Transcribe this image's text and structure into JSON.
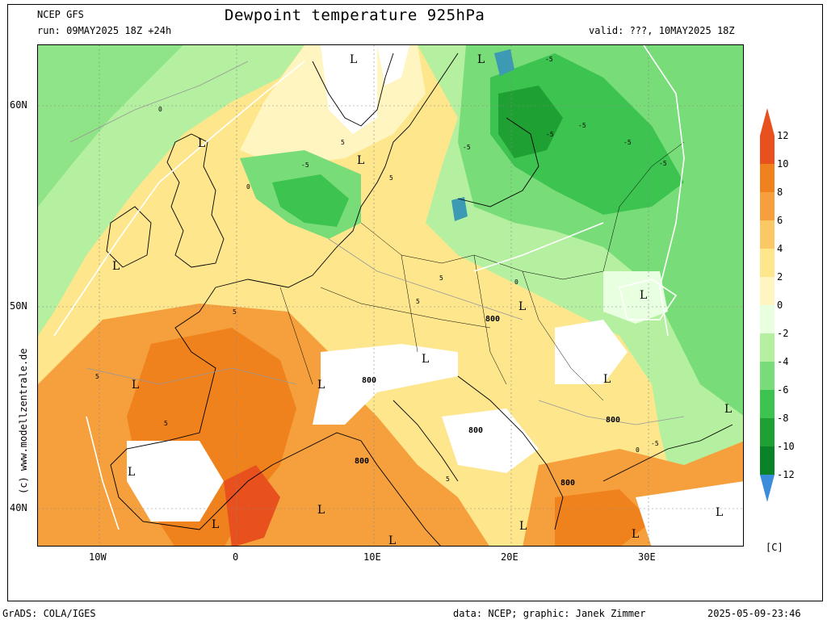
{
  "header": {
    "model": "NCEP GFS",
    "run": "run: 09MAY2025 18Z +24h",
    "title": "Dewpoint temperature 925hPa",
    "valid": "valid: ???, 10MAY2025 18Z"
  },
  "map": {
    "lat_labels": [
      "60N",
      "50N",
      "40N"
    ],
    "lon_labels": [
      "10W",
      "0",
      "10E",
      "20E",
      "30E"
    ],
    "lows": [
      "L",
      "L",
      "L",
      "L",
      "L",
      "L",
      "L",
      "L",
      "L",
      "L",
      "L",
      "L",
      "L",
      "L",
      "L",
      "L",
      "L",
      "L",
      "L"
    ],
    "contour_labels": [
      "-5",
      "-5",
      "-5",
      "-5",
      "-5",
      "-5",
      "-5",
      "-5",
      "0",
      "0",
      "0",
      "0",
      "5",
      "5",
      "5",
      "5",
      "5",
      "5",
      "5",
      "5"
    ],
    "terrain_labels": [
      "800",
      "800",
      "800",
      "800",
      "800",
      "800"
    ]
  },
  "colorbar": {
    "labels": [
      "12",
      "10",
      "8",
      "6",
      "4",
      "2",
      "0",
      "-2",
      "-4",
      "-6",
      "-8",
      "-10",
      "-12"
    ],
    "colors": [
      "#e8501e",
      "#f0821e",
      "#f5a03c",
      "#fac864",
      "#fde68c",
      "#fff5c0",
      "#e8ffe0",
      "#b4f0a0",
      "#78dc78",
      "#3cc350",
      "#1ea032",
      "#0a8228",
      "#3c9ab4"
    ],
    "unit": "[C]"
  },
  "footer": {
    "side_credit": "(c) www.modellzentrale.de",
    "grads": "GrADS: COLA/IGES",
    "data": "data: NCEP; graphic: Janek Zimmer",
    "timestamp": "2025-05-09-23:46"
  }
}
